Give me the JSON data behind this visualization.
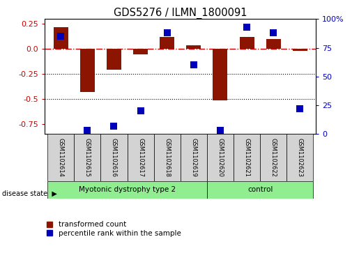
{
  "title": "GDS5276 / ILMN_1800091",
  "samples": [
    "GSM1102614",
    "GSM1102615",
    "GSM1102616",
    "GSM1102617",
    "GSM1102618",
    "GSM1102619",
    "GSM1102620",
    "GSM1102621",
    "GSM1102622",
    "GSM1102623"
  ],
  "red_values": [
    0.22,
    -0.43,
    -0.21,
    -0.055,
    0.12,
    0.04,
    -0.51,
    0.12,
    0.1,
    -0.02
  ],
  "blue_values_pct": [
    85,
    3,
    7,
    20,
    88,
    60,
    3,
    93,
    88,
    22
  ],
  "ylim_left": [
    -0.85,
    0.3
  ],
  "ylim_right": [
    0,
    100
  ],
  "yticks_left": [
    0.25,
    0.0,
    -0.25,
    -0.5,
    -0.75
  ],
  "yticks_right": [
    100,
    75,
    50,
    25,
    0
  ],
  "red_color": "#8B1500",
  "blue_color": "#0000BB",
  "zero_line_color": "#CC0000",
  "dot_line_color": "#000000",
  "legend_red_label": "transformed count",
  "legend_blue_label": "percentile rank within the sample",
  "sample_box_color": "#D3D3D3",
  "green_color": "#90EE90",
  "group1_label": "Myotonic dystrophy type 2",
  "group2_label": "control",
  "disease_state_label": "disease state"
}
